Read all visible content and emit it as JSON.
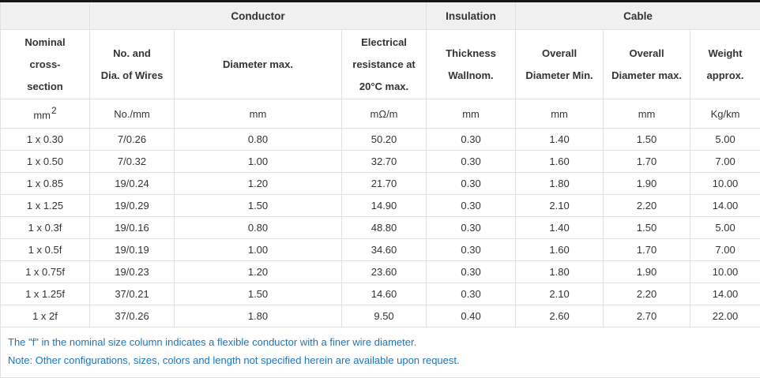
{
  "table": {
    "column_groups": [
      {
        "label": ""
      },
      {
        "label": "Conductor"
      },
      {
        "label": "Insulation"
      },
      {
        "label": "Cable"
      }
    ],
    "headers": [
      [
        "Nominal",
        "cross-",
        "section"
      ],
      [
        "No. and",
        "Dia. of Wires"
      ],
      [
        "Diameter max."
      ],
      [
        "Electrical",
        "resistance at",
        "20°C max."
      ],
      [
        "Thickness",
        "Wallnom."
      ],
      [
        "Overall",
        "Diameter Min."
      ],
      [
        "Overall",
        "Diameter max."
      ],
      [
        "Weight",
        "approx."
      ]
    ],
    "units": {
      "nominal_base": "mm",
      "nominal_sup": "2",
      "rest": [
        "No./mm",
        "mm",
        "mΩ/m",
        "mm",
        "mm",
        "mm",
        "Kg/km"
      ]
    },
    "rows": [
      [
        "1 x 0.30",
        "7/0.26",
        "0.80",
        "50.20",
        "0.30",
        "1.40",
        "1.50",
        "5.00"
      ],
      [
        "1 x 0.50",
        "7/0.32",
        "1.00",
        "32.70",
        "0.30",
        "1.60",
        "1.70",
        "7.00"
      ],
      [
        "1 x 0.85",
        "19/0.24",
        "1.20",
        "21.70",
        "0.30",
        "1.80",
        "1.90",
        "10.00"
      ],
      [
        "1 x 1.25",
        "19/0.29",
        "1.50",
        "14.90",
        "0.30",
        "2.10",
        "2.20",
        "14.00"
      ],
      [
        "1 x 0.3f",
        "19/0.16",
        "0.80",
        "48.80",
        "0.30",
        "1.40",
        "1.50",
        "5.00"
      ],
      [
        "1 x 0.5f",
        "19/0.19",
        "1.00",
        "34.60",
        "0.30",
        "1.60",
        "1.70",
        "7.00"
      ],
      [
        "1 x 0.75f",
        "19/0.23",
        "1.20",
        "23.60",
        "0.30",
        "1.80",
        "1.90",
        "10.00"
      ],
      [
        "1 x 1.25f",
        "37/0.21",
        "1.50",
        "14.60",
        "0.30",
        "2.10",
        "2.20",
        "14.00"
      ],
      [
        "1 x 2f",
        "37/0.26",
        "1.80",
        "9.50",
        "0.40",
        "2.60",
        "2.70",
        "22.00"
      ]
    ]
  },
  "notes": {
    "flexible": "The \"f\" in the nominal size column indicates a flexible conductor with a finer wire diameter.",
    "availability": "Note: Other configurations, sizes, colors and length not specified herein are available upon request."
  },
  "colors": {
    "note_text": "#1b75bb",
    "group_header_bg": "#f0f0f0",
    "cell_border": "#e0e0e0",
    "top_border": "#161616",
    "body_text": "#333333"
  }
}
